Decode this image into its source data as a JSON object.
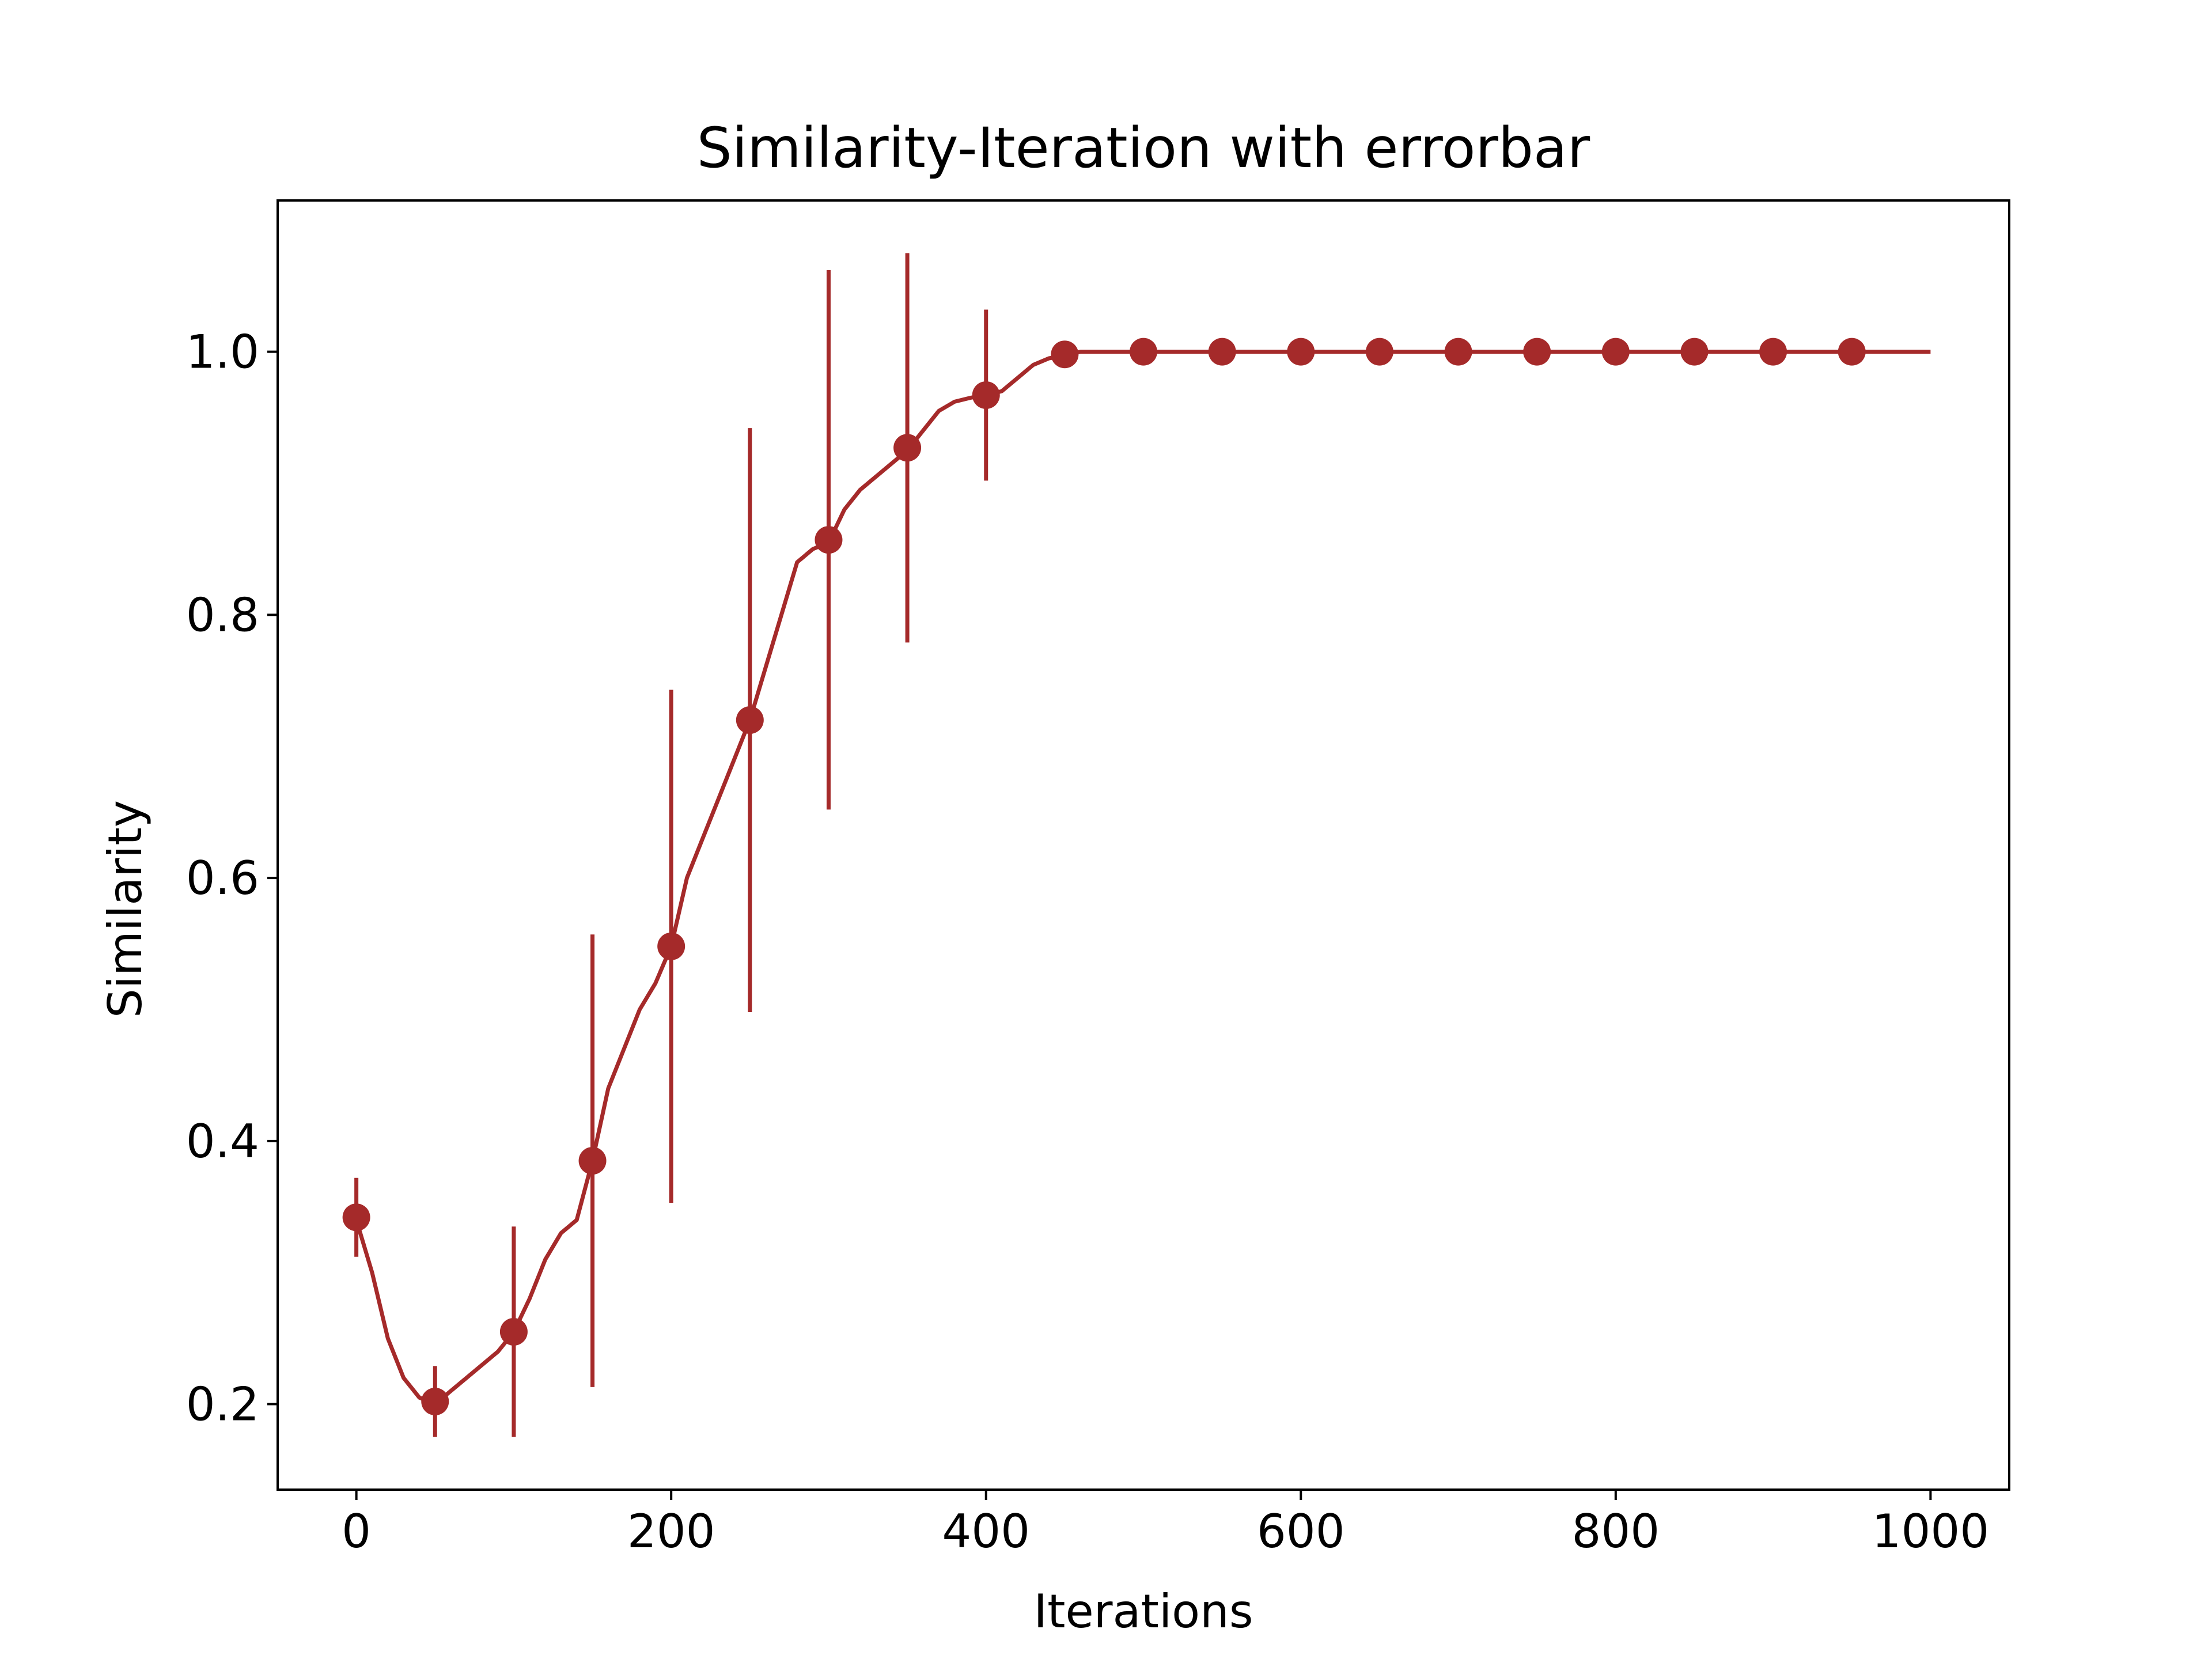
{
  "chart_data": {
    "type": "line",
    "title": "Similarity-Iteration with errorbar",
    "xlabel": "Iterations",
    "ylabel": "Similarity",
    "xlim": [
      -50,
      1050
    ],
    "ylim": [
      0.135,
      1.115
    ],
    "x_ticks": [
      0,
      200,
      400,
      600,
      800,
      1000
    ],
    "x_tick_labels": [
      "0",
      "200",
      "400",
      "600",
      "800",
      "1000"
    ],
    "y_ticks": [
      0.2,
      0.4,
      0.6,
      0.8,
      1.0
    ],
    "y_tick_labels": [
      "0.2",
      "0.4",
      "0.6",
      "0.8",
      "1.0"
    ],
    "grid": false,
    "line_color": "#a52a2a",
    "series": [
      {
        "type": "line",
        "x": [
          0,
          10,
          20,
          30,
          40,
          50,
          60,
          70,
          80,
          90,
          100,
          110,
          120,
          130,
          140,
          150,
          160,
          170,
          180,
          190,
          200,
          210,
          220,
          230,
          240,
          250,
          260,
          270,
          280,
          290,
          300,
          310,
          320,
          330,
          340,
          350,
          360,
          370,
          380,
          390,
          400,
          410,
          420,
          430,
          440,
          450,
          460,
          1000
        ],
        "y": [
          0.34,
          0.3,
          0.25,
          0.22,
          0.205,
          0.2,
          0.21,
          0.22,
          0.23,
          0.24,
          0.255,
          0.28,
          0.31,
          0.33,
          0.34,
          0.385,
          0.44,
          0.47,
          0.5,
          0.52,
          0.548,
          0.6,
          0.63,
          0.66,
          0.69,
          0.72,
          0.76,
          0.8,
          0.84,
          0.85,
          0.855,
          0.88,
          0.895,
          0.905,
          0.915,
          0.925,
          0.94,
          0.955,
          0.962,
          0.965,
          0.967,
          0.97,
          0.98,
          0.99,
          0.995,
          0.997,
          1.0,
          1.0
        ]
      },
      {
        "type": "errorbar",
        "x": [
          0,
          50,
          100,
          150,
          200,
          250,
          300,
          350,
          400,
          450,
          500,
          550,
          600,
          650,
          700,
          750,
          800,
          850,
          900,
          950
        ],
        "y": [
          0.342,
          0.202,
          0.255,
          0.385,
          0.548,
          0.72,
          0.857,
          0.927,
          0.967,
          0.998,
          1.0,
          1.0,
          1.0,
          1.0,
          1.0,
          1.0,
          1.0,
          1.0,
          1.0,
          1.0
        ],
        "yerr": [
          0.03,
          0.027,
          0.08,
          0.172,
          0.195,
          0.222,
          0.205,
          0.148,
          0.065,
          0.0,
          0.0,
          0.0,
          0.0,
          0.0,
          0.0,
          0.0,
          0.0,
          0.0,
          0.0,
          0.0
        ]
      }
    ]
  }
}
